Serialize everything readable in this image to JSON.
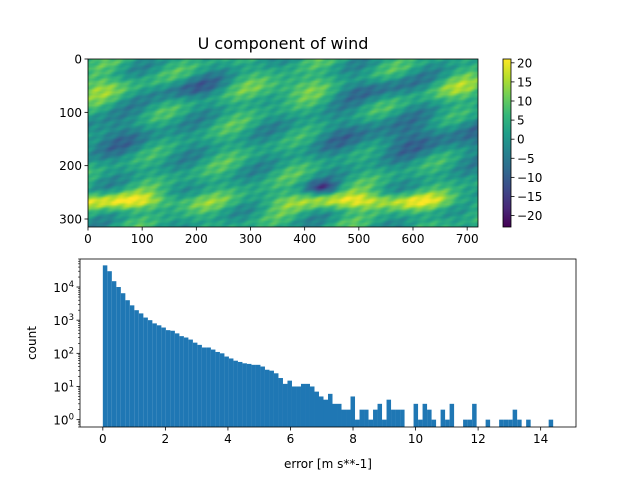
{
  "colors": {
    "bar": "#1f77b4",
    "viridis": [
      "#440154",
      "#482878",
      "#3e4989",
      "#31688e",
      "#26828e",
      "#1f9e89",
      "#35b779",
      "#6ece58",
      "#b5de2b",
      "#fde725"
    ]
  },
  "chart_data": [
    {
      "type": "heatmap",
      "title": "U component of wind",
      "xlabel": "",
      "ylabel": "",
      "xlim": [
        0,
        720
      ],
      "ylim": [
        315,
        0
      ],
      "y_inverted": true,
      "xticks": [
        0,
        100,
        200,
        300,
        400,
        500,
        600,
        700
      ],
      "yticks": [
        0,
        100,
        200,
        300
      ],
      "colorscale": "viridis",
      "colorbar": {
        "range": [
          -23,
          21
        ],
        "ticks": [
          20,
          15,
          10,
          5,
          0,
          -5,
          -10,
          -15,
          -20
        ],
        "tick_labels": [
          "20",
          "15",
          "10",
          "5",
          "0",
          "−5",
          "−10",
          "−15",
          "−20"
        ]
      }
    },
    {
      "type": "bar",
      "subtype": "histogram",
      "xlabel": "error [m s**-1]",
      "ylabel": "count",
      "yscale": "log",
      "xlim": [
        -0.73,
        15.13
      ],
      "ylim": [
        0.6,
        70000
      ],
      "xticks": [
        0,
        2,
        4,
        6,
        8,
        10,
        12,
        14
      ],
      "yticks": [
        1,
        10,
        100,
        1000,
        10000
      ],
      "ytick_labels": [
        {
          "base": "10",
          "exp": "0"
        },
        {
          "base": "10",
          "exp": "1"
        },
        {
          "base": "10",
          "exp": "2"
        },
        {
          "base": "10",
          "exp": "3"
        },
        {
          "base": "10",
          "exp": "4"
        }
      ],
      "bin_width": 0.144,
      "x": [
        0.072,
        0.216,
        0.36,
        0.504,
        0.648,
        0.792,
        0.936,
        1.08,
        1.224,
        1.368,
        1.512,
        1.656,
        1.8,
        1.944,
        2.088,
        2.232,
        2.376,
        2.52,
        2.664,
        2.808,
        2.952,
        3.096,
        3.24,
        3.384,
        3.528,
        3.672,
        3.816,
        3.96,
        4.104,
        4.248,
        4.392,
        4.536,
        4.68,
        4.824,
        4.968,
        5.112,
        5.256,
        5.4,
        5.544,
        5.688,
        5.832,
        5.976,
        6.12,
        6.264,
        6.408,
        6.552,
        6.696,
        6.84,
        6.984,
        7.128,
        7.272,
        7.416,
        7.56,
        7.704,
        7.848,
        7.992,
        8.136,
        8.28,
        8.424,
        8.568,
        8.712,
        8.856,
        9,
        9.144,
        9.288,
        9.432,
        9.576,
        9.72,
        9.864,
        10.008,
        10.152,
        10.296,
        10.44,
        10.584,
        10.728,
        10.872,
        11.016,
        11.16,
        11.304,
        11.448,
        11.592,
        11.736,
        11.88,
        12.024,
        12.168,
        12.312,
        12.456,
        12.6,
        12.744,
        12.888,
        13.032,
        13.176,
        13.32,
        13.464,
        13.608,
        13.752,
        13.896,
        14.04,
        14.184,
        14.328
      ],
      "values": [
        45000,
        30000,
        15000,
        10000,
        6500,
        4000,
        2800,
        2000,
        1600,
        1200,
        1000,
        800,
        700,
        600,
        500,
        480,
        400,
        330,
        300,
        260,
        210,
        180,
        150,
        150,
        130,
        110,
        100,
        80,
        70,
        60,
        55,
        50,
        48,
        45,
        45,
        40,
        32,
        30,
        25,
        18,
        12,
        15,
        10,
        10,
        12,
        12,
        10,
        7,
        5,
        4,
        6,
        3,
        3,
        2,
        2,
        5,
        1,
        2,
        2,
        1,
        2,
        3,
        1,
        4,
        2,
        2,
        2,
        0,
        0,
        3,
        1,
        3,
        2,
        1,
        0,
        2,
        1,
        3,
        0,
        0,
        1,
        1,
        3,
        0,
        0,
        1,
        0,
        0,
        1,
        1,
        1,
        2,
        1,
        0,
        1,
        0,
        0,
        0,
        0,
        1
      ]
    }
  ]
}
